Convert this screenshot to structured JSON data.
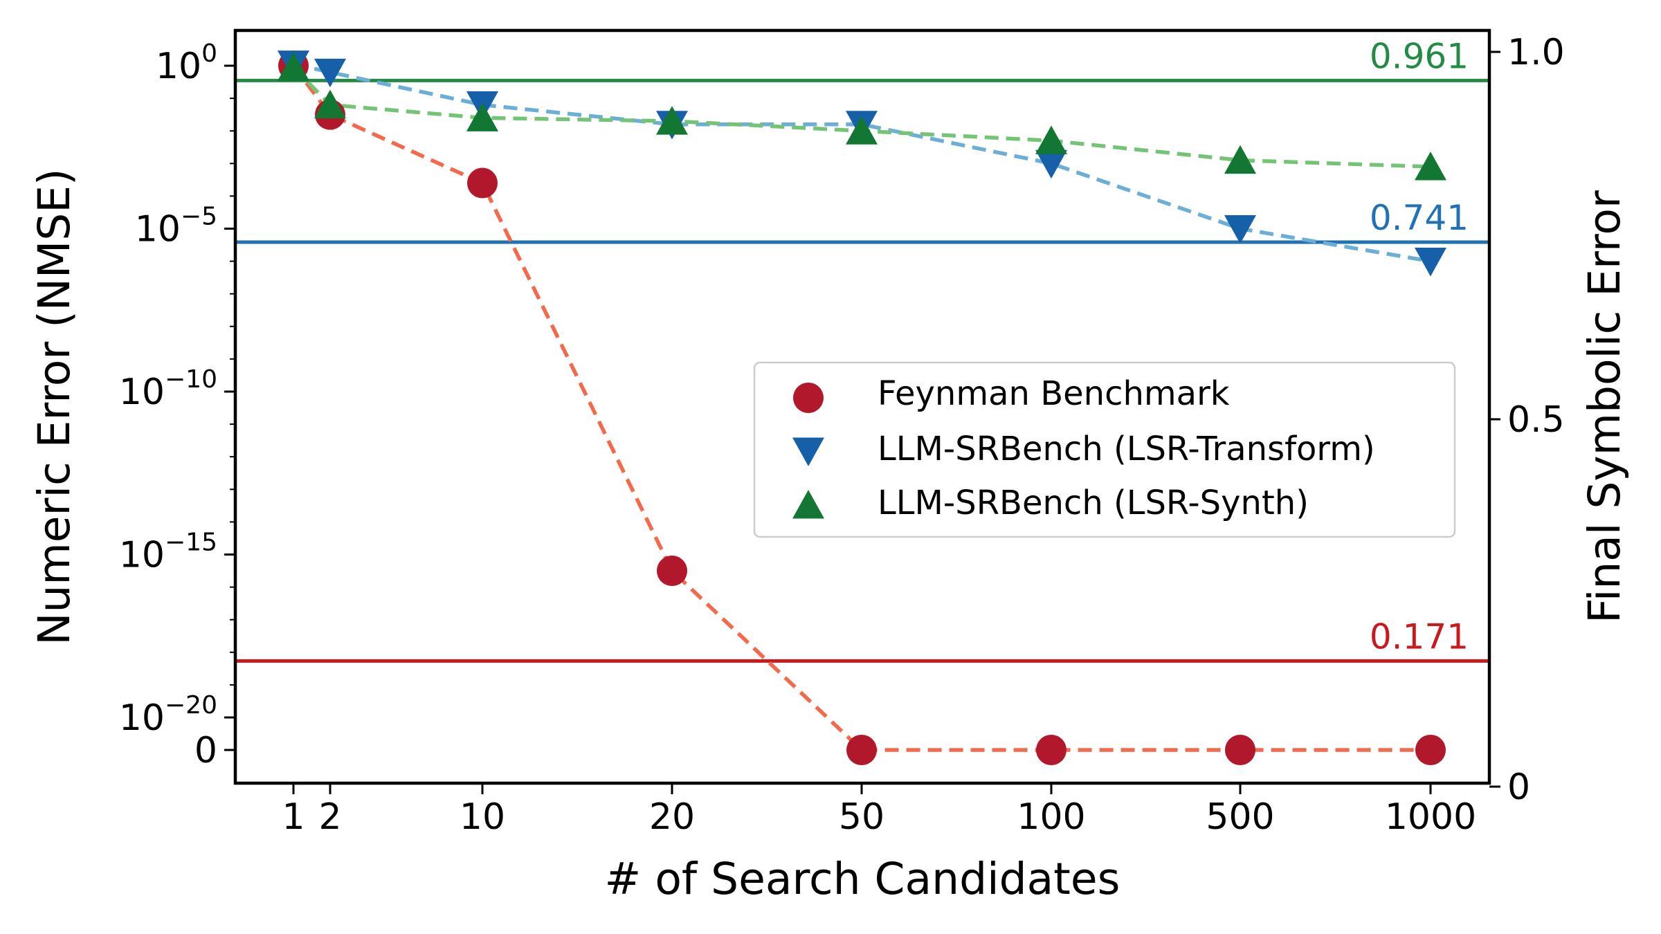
{
  "chart_data": {
    "type": "line",
    "xlabel": "# of Search Candidates",
    "ylabel_left": "Numeric Error (NMSE)",
    "ylabel_right": "Final Symbolic Error",
    "x_tick_labels": [
      "1",
      "2",
      "10",
      "20",
      "50",
      "100",
      "500",
      "1000"
    ],
    "y_left_scale": "symlog",
    "y_left_ticks": [
      {
        "base": "10",
        "exp": "0",
        "value": 1
      },
      {
        "base": "10",
        "exp": "−5",
        "value": 1e-05
      },
      {
        "base": "10",
        "exp": "−10",
        "value": 1e-10
      },
      {
        "base": "10",
        "exp": "−15",
        "value": 1e-15
      },
      {
        "base": "10",
        "exp": "−20",
        "value": 1e-20
      },
      {
        "base": "0",
        "exp": "",
        "value": 0
      }
    ],
    "y_right_ticks": [
      "0",
      "0.5",
      "1.0"
    ],
    "y_right_range": [
      0,
      1.0
    ],
    "legend_position": "center-right",
    "series": [
      {
        "name": "Feynman Benchmark",
        "marker": "circle",
        "marker_color": "#b2182b",
        "line_color": "#f4694b",
        "y_log10": [
          0,
          -1.5,
          -3.6,
          -15.5,
          null,
          null,
          null,
          null
        ],
        "y_values": [
          "1",
          "0.03",
          "2.5e-4",
          "3e-16",
          "0",
          "0",
          "0",
          "0"
        ],
        "final_symbolic_error": 0.171,
        "final_label": "0.171",
        "ref_color": "#cb181d"
      },
      {
        "name": "LLM-SRBench (LSR-Transform)",
        "marker": "triangle-down",
        "marker_color": "#1560a8",
        "line_color": "#6baed6",
        "y_log10": [
          0.05,
          -0.2,
          -1.2,
          -1.8,
          -1.8,
          -3.0,
          -5.0,
          -6.0
        ],
        "final_symbolic_error": 0.741,
        "final_label": "0.741",
        "ref_color": "#2171b5"
      },
      {
        "name": "LLM-SRBench (LSR-Synth)",
        "marker": "triangle-up",
        "marker_color": "#117733",
        "line_color": "#74c476",
        "y_log10": [
          -0.05,
          -1.2,
          -1.6,
          -1.7,
          -2.0,
          -2.3,
          -2.9,
          -3.1
        ],
        "final_symbolic_error": 0.961,
        "final_label": "0.961",
        "ref_color": "#238b45"
      }
    ]
  }
}
